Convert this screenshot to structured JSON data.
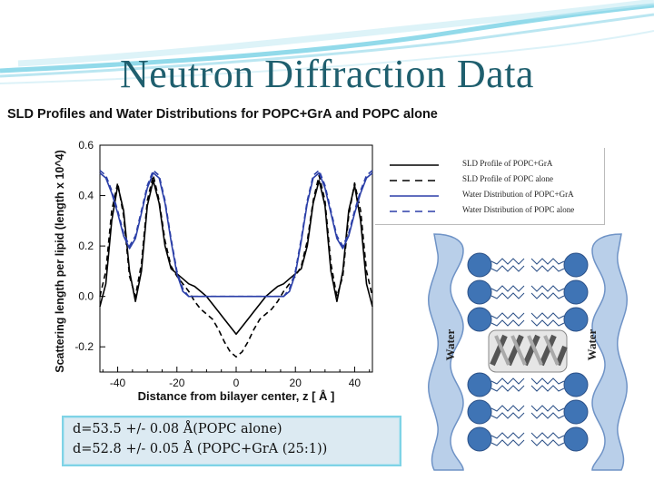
{
  "slide": {
    "title": "Neutron Diffraction Data",
    "subtitle": "SLD Profiles and Water Distributions for POPC+GrA and POPC alone",
    "spacing_lines": [
      "d=53.5 +/- 0.08 Å(POPC alone)",
      "d=52.8 +/- 0.05 Å (POPC+GrA (25:1))"
    ],
    "accent_color": "#1f5f6e",
    "box_color": "#dceaf2"
  },
  "schematic": {
    "left_label": "Water",
    "right_label": "Water",
    "lipid_head_color": "#3f74b5",
    "water_region_color": "#b9cfe9"
  },
  "chart_data": {
    "type": "line",
    "xlabel": "Distance from bilayer center, z [ Å ]",
    "ylabel": "Scattering length per lipid (length x 10^4)",
    "xlim": [
      -46,
      46
    ],
    "ylim": [
      -0.3,
      0.6
    ],
    "x_ticks": [
      -40,
      -20,
      0,
      20,
      40
    ],
    "y_ticks": [
      -0.2,
      0.0,
      0.2,
      0.4,
      0.6
    ],
    "x_tick_labels": [
      "-40",
      "-20",
      "0",
      "20",
      "40"
    ],
    "y_tick_labels": [
      "-0.2",
      "0.0",
      "0.2",
      "0.4",
      "0.6"
    ],
    "legend_position": "top-right",
    "series": [
      {
        "name": "SLD Profile of POPC+GrA",
        "color": "#000000",
        "dash": "solid",
        "x": [
          -46,
          -44,
          -42,
          -40,
          -38,
          -36,
          -34,
          -32,
          -30,
          -28,
          -26,
          -24,
          -22,
          -20,
          -18,
          -16,
          -14,
          -12,
          -10,
          -8,
          -6,
          -4,
          -2,
          0,
          2,
          4,
          6,
          8,
          10,
          12,
          14,
          16,
          18,
          20,
          22,
          24,
          26,
          28,
          30,
          32,
          34,
          36,
          38,
          40,
          42,
          44,
          46
        ],
        "y": [
          -0.04,
          0.05,
          0.3,
          0.44,
          0.34,
          0.1,
          -0.02,
          0.1,
          0.36,
          0.46,
          0.37,
          0.2,
          0.11,
          0.09,
          0.07,
          0.05,
          0.04,
          0.02,
          0.0,
          -0.03,
          -0.06,
          -0.09,
          -0.12,
          -0.15,
          -0.12,
          -0.09,
          -0.06,
          -0.03,
          0.0,
          0.02,
          0.04,
          0.05,
          0.07,
          0.09,
          0.11,
          0.2,
          0.37,
          0.46,
          0.36,
          0.1,
          -0.02,
          0.1,
          0.34,
          0.44,
          0.3,
          0.05,
          -0.04
        ]
      },
      {
        "name": "SLD Profile of POPC alone",
        "color": "#000000",
        "dash": "dashed",
        "x": [
          -46,
          -44,
          -42,
          -40,
          -38,
          -36,
          -34,
          -32,
          -30,
          -28,
          -26,
          -24,
          -22,
          -20,
          -18,
          -16,
          -14,
          -12,
          -10,
          -8,
          -6,
          -4,
          -2,
          0,
          2,
          4,
          6,
          8,
          10,
          12,
          14,
          16,
          18,
          20,
          22,
          24,
          26,
          28,
          30,
          32,
          34,
          36,
          38,
          40,
          42,
          44,
          46
        ],
        "y": [
          0.0,
          0.1,
          0.34,
          0.45,
          0.32,
          0.08,
          0.0,
          0.13,
          0.38,
          0.48,
          0.38,
          0.22,
          0.12,
          0.08,
          0.05,
          0.02,
          -0.02,
          -0.05,
          -0.07,
          -0.09,
          -0.13,
          -0.18,
          -0.22,
          -0.24,
          -0.22,
          -0.18,
          -0.13,
          -0.09,
          -0.07,
          -0.05,
          -0.02,
          0.02,
          0.05,
          0.08,
          0.12,
          0.22,
          0.38,
          0.48,
          0.38,
          0.13,
          0.0,
          0.08,
          0.32,
          0.45,
          0.34,
          0.1,
          0.0
        ]
      },
      {
        "name": "Water Distribution of POPC+GrA",
        "color": "#2b3fa8",
        "dash": "solid",
        "x": [
          -46,
          -44,
          -42,
          -40,
          -38,
          -36,
          -34,
          -32,
          -30,
          -28,
          -26,
          -24,
          -22,
          -20,
          -18,
          -16,
          -14,
          -12,
          -10,
          -8,
          -6,
          -4,
          -2,
          0,
          2,
          4,
          6,
          8,
          10,
          12,
          14,
          16,
          18,
          20,
          22,
          24,
          26,
          28,
          30,
          32,
          34,
          36,
          38,
          40,
          42,
          44,
          46
        ],
        "y": [
          0.49,
          0.47,
          0.41,
          0.33,
          0.24,
          0.19,
          0.23,
          0.33,
          0.43,
          0.49,
          0.47,
          0.37,
          0.22,
          0.09,
          0.02,
          0.0,
          0.0,
          0.0,
          0.0,
          0.0,
          0.0,
          0.0,
          0.0,
          0.0,
          0.0,
          0.0,
          0.0,
          0.0,
          0.0,
          0.0,
          0.0,
          0.0,
          0.02,
          0.09,
          0.22,
          0.37,
          0.47,
          0.49,
          0.43,
          0.33,
          0.23,
          0.19,
          0.24,
          0.33,
          0.41,
          0.47,
          0.49
        ]
      },
      {
        "name": "Water Distribution of POPC alone",
        "color": "#2b3fa8",
        "dash": "dashed",
        "x": [
          -46,
          -44,
          -42,
          -40,
          -38,
          -36,
          -34,
          -32,
          -30,
          -28,
          -26,
          -24,
          -22,
          -20,
          -18,
          -16,
          -14,
          -12,
          -10,
          -8,
          -6,
          -4,
          -2,
          0,
          2,
          4,
          6,
          8,
          10,
          12,
          14,
          16,
          18,
          20,
          22,
          24,
          26,
          28,
          30,
          32,
          34,
          36,
          38,
          40,
          42,
          44,
          46
        ],
        "y": [
          0.5,
          0.48,
          0.42,
          0.34,
          0.25,
          0.2,
          0.24,
          0.34,
          0.44,
          0.5,
          0.48,
          0.38,
          0.23,
          0.1,
          0.03,
          0.0,
          0.0,
          0.0,
          0.0,
          0.0,
          0.0,
          0.0,
          0.0,
          0.0,
          0.0,
          0.0,
          0.0,
          0.0,
          0.0,
          0.0,
          0.0,
          0.0,
          0.03,
          0.1,
          0.23,
          0.38,
          0.48,
          0.5,
          0.44,
          0.34,
          0.24,
          0.2,
          0.25,
          0.34,
          0.42,
          0.48,
          0.5
        ]
      }
    ]
  }
}
